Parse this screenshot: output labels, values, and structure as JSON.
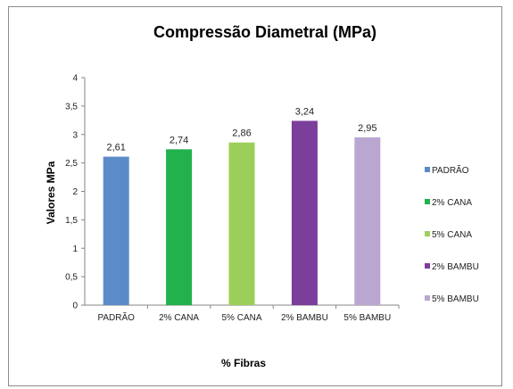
{
  "chart_data": {
    "type": "bar",
    "title": "Compressão Diametral (MPa)",
    "xlabel": "% Fibras",
    "ylabel": "Valores MPa",
    "ylim": [
      0,
      4
    ],
    "yticks": [
      "0",
      "0,5",
      "1",
      "1,5",
      "2",
      "2,5",
      "3",
      "3,5",
      "4"
    ],
    "categories": [
      "PADRÃO",
      "2% CANA",
      "5% CANA",
      "2% BAMBU",
      "5% BAMBU"
    ],
    "values": [
      2.61,
      2.74,
      2.86,
      3.24,
      2.95
    ],
    "data_labels": [
      "2,61",
      "2,74",
      "2,86",
      "3,24",
      "2,95"
    ],
    "colors": [
      "#5b8bc9",
      "#22b14c",
      "#9ccf5a",
      "#7b3e9b",
      "#b9a7d1"
    ],
    "legend": {
      "position": "right",
      "entries": [
        "PADRÃO",
        "2% CANA",
        "5% CANA",
        "2% BAMBU",
        "5% BAMBU"
      ]
    },
    "grid": false
  }
}
